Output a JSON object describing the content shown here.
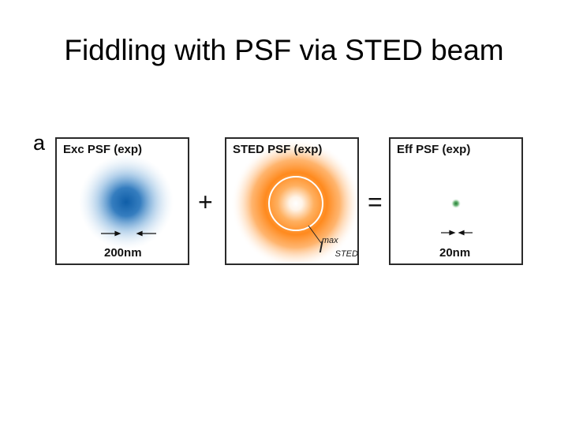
{
  "title": "Fiddling with PSF via STED beam",
  "panel_label": "a",
  "panels": [
    {
      "title": "Exc PSF (exp)",
      "scale_label": "200nm"
    },
    {
      "title": "STED PSF (exp)",
      "intensity_label": {
        "base": "I",
        "sup": "max",
        "sub": "STED"
      }
    },
    {
      "title": "Eff PSF (exp)",
      "scale_label": "20nm"
    }
  ],
  "operators": {
    "plus": "+",
    "equals": "="
  },
  "colors": {
    "exc": "#1f6fb8",
    "sted": "#ff8a1e",
    "eff": "#2e8b3c",
    "frame": "#2a2a2a"
  }
}
